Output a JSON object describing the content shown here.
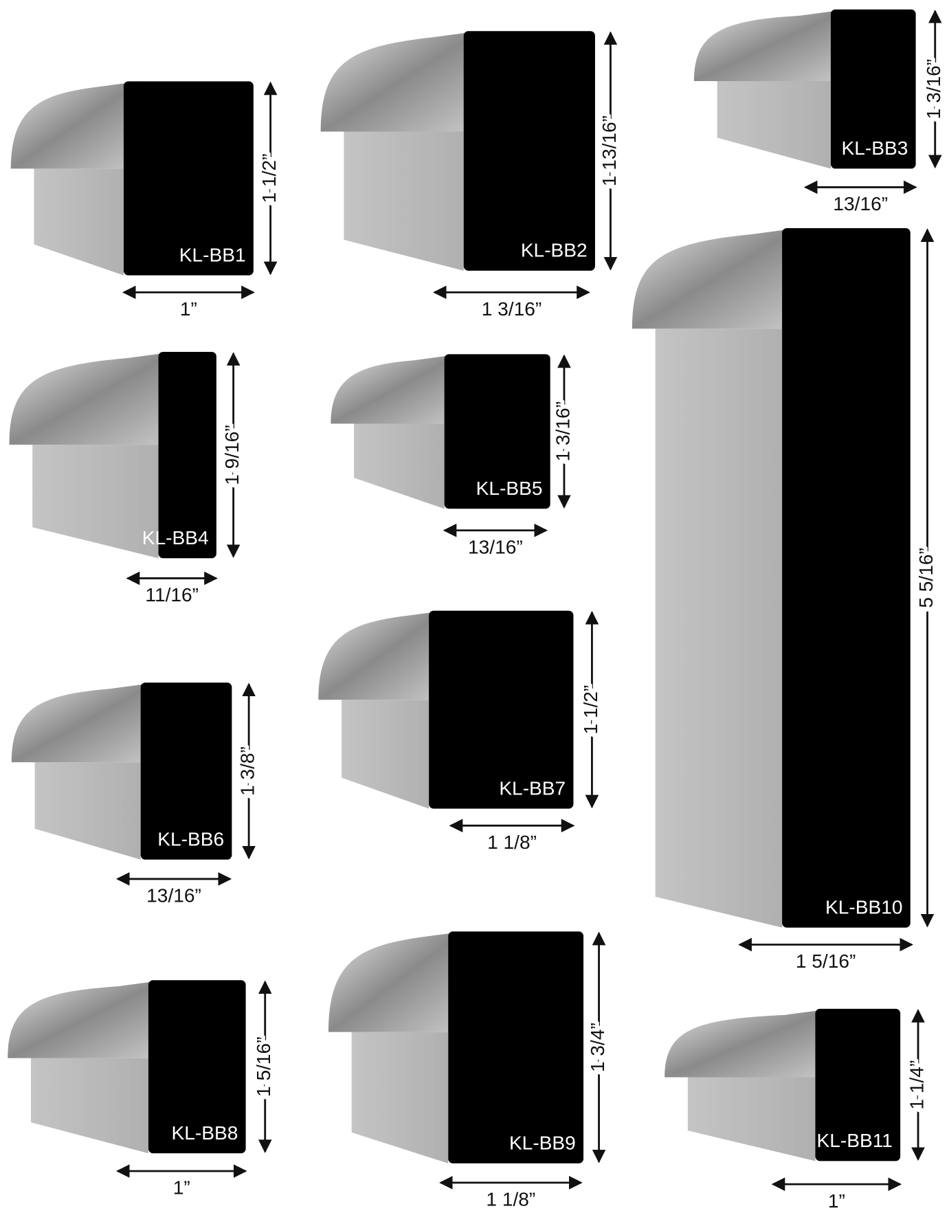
{
  "profiles": [
    {
      "label": "KL-BB1",
      "height": "1 1/2”",
      "width": "1”"
    },
    {
      "label": "KL-BB2",
      "height": "1 13/16”",
      "width": "1 3/16”"
    },
    {
      "label": "KL-BB3",
      "height": "1 3/16”",
      "width": "13/16”"
    },
    {
      "label": "KL-BB4",
      "height": "1 9/16”",
      "width": "11/16”"
    },
    {
      "label": "KL-BB5",
      "height": "1 3/16”",
      "width": "13/16”"
    },
    {
      "label": "KL-BB6",
      "height": "1 3/8”",
      "width": "13/16”"
    },
    {
      "label": "KL-BB7",
      "height": "1 1/2”",
      "width": "1 1/8”"
    },
    {
      "label": "KL-BB10",
      "height": "5 5/16”",
      "width": "1 5/16”"
    },
    {
      "label": "KL-BB8",
      "height": "1 5/16”",
      "width": "1”"
    },
    {
      "label": "KL-BB9",
      "height": "1 3/4”",
      "width": "1 1/8”"
    },
    {
      "label": "KL-BB11",
      "height": "1 1/4”",
      "width": "1”"
    }
  ]
}
